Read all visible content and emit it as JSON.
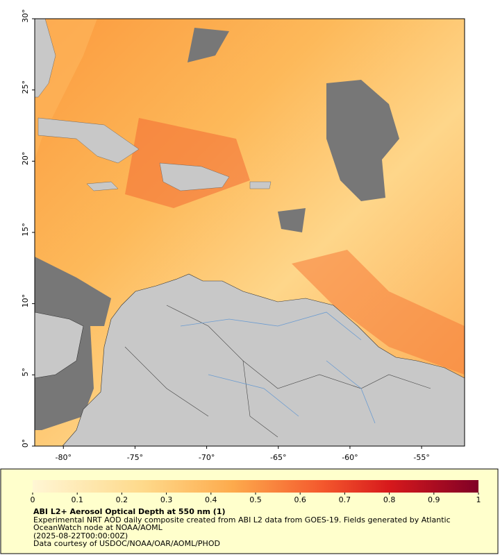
{
  "map": {
    "xlim": [
      -82,
      -52
    ],
    "ylim": [
      0,
      30
    ],
    "lon_ticks": [
      {
        "value": -80,
        "label": "-80°"
      },
      {
        "value": -75,
        "label": "-75°"
      },
      {
        "value": -70,
        "label": "-70°"
      },
      {
        "value": -65,
        "label": "-65°"
      },
      {
        "value": -60,
        "label": "-60°"
      },
      {
        "value": -55,
        "label": "-55°"
      }
    ],
    "lat_ticks": [
      {
        "value": 0,
        "label": "0°"
      },
      {
        "value": 5,
        "label": "5°"
      },
      {
        "value": 10,
        "label": "10°"
      },
      {
        "value": 15,
        "label": "15°"
      },
      {
        "value": 20,
        "label": "20°"
      },
      {
        "value": 25,
        "label": "25°"
      },
      {
        "value": 30,
        "label": "30°"
      }
    ]
  },
  "colorbar": {
    "lim": [
      0,
      1
    ],
    "ticks": [
      0,
      0.1,
      0.2,
      0.3,
      0.4,
      0.5,
      0.6,
      0.7,
      0.8,
      0.9,
      1
    ]
  },
  "footer": {
    "title": "ABI L2+ Aerosol Optical Depth at 550 nm (1)",
    "description": "Experimental NRT AOD daily composite created from ABI L2 data from GOES-19. Fields generated by Atlantic OceanWatch node at NOAA/AOML",
    "date": "(2025-08-22T00:00:00Z)",
    "credit": "Data courtesy of USDOC/NOAA/OAR/AOML/PHOD"
  }
}
